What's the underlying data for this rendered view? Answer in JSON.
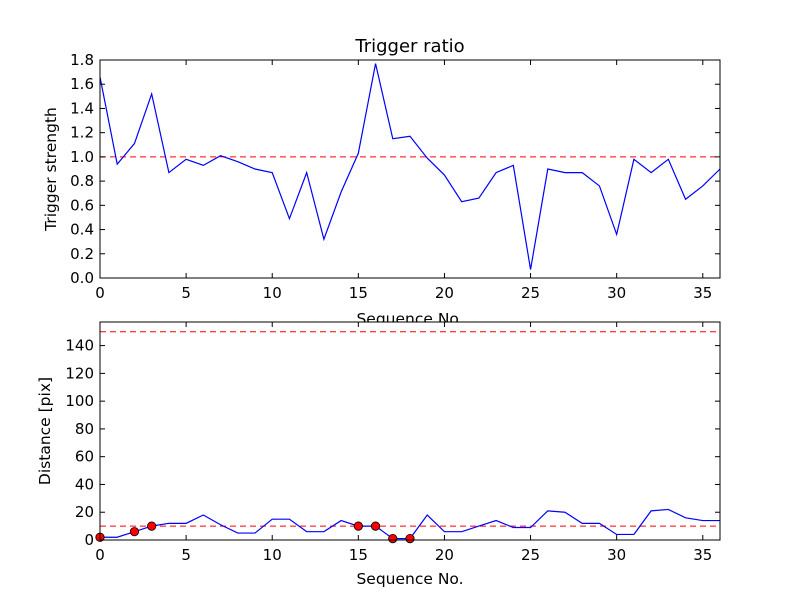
{
  "chart_data": [
    {
      "type": "line",
      "title": "Trigger ratio",
      "xlabel": "Sequence No.",
      "ylabel": "Trigger strength",
      "xlim": [
        0,
        36
      ],
      "ylim": [
        0.0,
        1.8
      ],
      "xticks": [
        0,
        5,
        10,
        15,
        20,
        25,
        30,
        35
      ],
      "xtick_labels": [
        "0",
        "5",
        "10",
        "15",
        "20",
        "25",
        "30",
        "35"
      ],
      "yticks": [
        0.0,
        0.2,
        0.4,
        0.6,
        0.8,
        1.0,
        1.2,
        1.4,
        1.6,
        1.8
      ],
      "ytick_labels": [
        "0.0",
        "0.2",
        "0.4",
        "0.6",
        "0.8",
        "1.0",
        "1.2",
        "1.4",
        "1.6",
        "1.8"
      ],
      "grid": false,
      "series": [
        {
          "color": "#0000ff",
          "style": "solid",
          "x": [
            0,
            1,
            2,
            3,
            4,
            5,
            6,
            7,
            8,
            9,
            10,
            11,
            12,
            13,
            14,
            15,
            16,
            17,
            18,
            19,
            20,
            21,
            22,
            23,
            24,
            25,
            26,
            27,
            28,
            29,
            30,
            31,
            32,
            33,
            34,
            35,
            36
          ],
          "values": [
            1.66,
            0.94,
            1.11,
            1.52,
            0.87,
            0.98,
            0.93,
            1.01,
            0.96,
            0.9,
            0.87,
            0.49,
            0.87,
            0.32,
            0.71,
            1.03,
            1.77,
            1.15,
            1.17,
            0.99,
            0.85,
            0.63,
            0.66,
            0.87,
            0.93,
            0.07,
            0.9,
            0.87,
            0.87,
            0.76,
            0.36,
            0.98,
            0.87,
            0.98,
            0.65,
            0.76,
            0.9
          ]
        }
      ],
      "reference_lines": [
        {
          "y": 1.0,
          "color": "#ff0000",
          "style": "dashed"
        }
      ]
    },
    {
      "type": "line",
      "title": "",
      "xlabel": "Sequence No.",
      "ylabel": "Distance [pix]",
      "xlim": [
        0,
        36
      ],
      "ylim": [
        0,
        157
      ],
      "xticks": [
        0,
        5,
        10,
        15,
        20,
        25,
        30,
        35
      ],
      "xtick_labels": [
        "0",
        "5",
        "10",
        "15",
        "20",
        "25",
        "30",
        "35"
      ],
      "yticks": [
        0,
        20,
        40,
        60,
        80,
        100,
        120,
        140
      ],
      "ytick_labels": [
        "0",
        "20",
        "40",
        "60",
        "80",
        "100",
        "120",
        "140"
      ],
      "grid": false,
      "series": [
        {
          "color": "#0000ff",
          "style": "solid",
          "x": [
            0,
            1,
            2,
            3,
            4,
            5,
            6,
            7,
            8,
            9,
            10,
            11,
            12,
            13,
            14,
            15,
            16,
            17,
            18,
            19,
            20,
            21,
            22,
            23,
            24,
            25,
            26,
            27,
            28,
            29,
            30,
            31,
            32,
            33,
            34,
            35,
            36
          ],
          "values": [
            2,
            2,
            6,
            10,
            12,
            12,
            18,
            11,
            5,
            5,
            15,
            15,
            6,
            6,
            14,
            10,
            10,
            1,
            1,
            18,
            6,
            6,
            10,
            14,
            9,
            9,
            21,
            20,
            12,
            12,
            4,
            4,
            21,
            22,
            16,
            14,
            14
          ]
        }
      ],
      "markers": {
        "color": "#ff0000",
        "edge_color": "#000000",
        "x": [
          0,
          2,
          3,
          15,
          16,
          17,
          18
        ],
        "values": [
          2,
          6,
          10,
          10,
          10,
          1,
          1
        ]
      },
      "reference_lines": [
        {
          "y": 150,
          "color": "#ff0000",
          "style": "dashed"
        },
        {
          "y": 10,
          "color": "#ff0000",
          "style": "dashed"
        }
      ]
    }
  ]
}
